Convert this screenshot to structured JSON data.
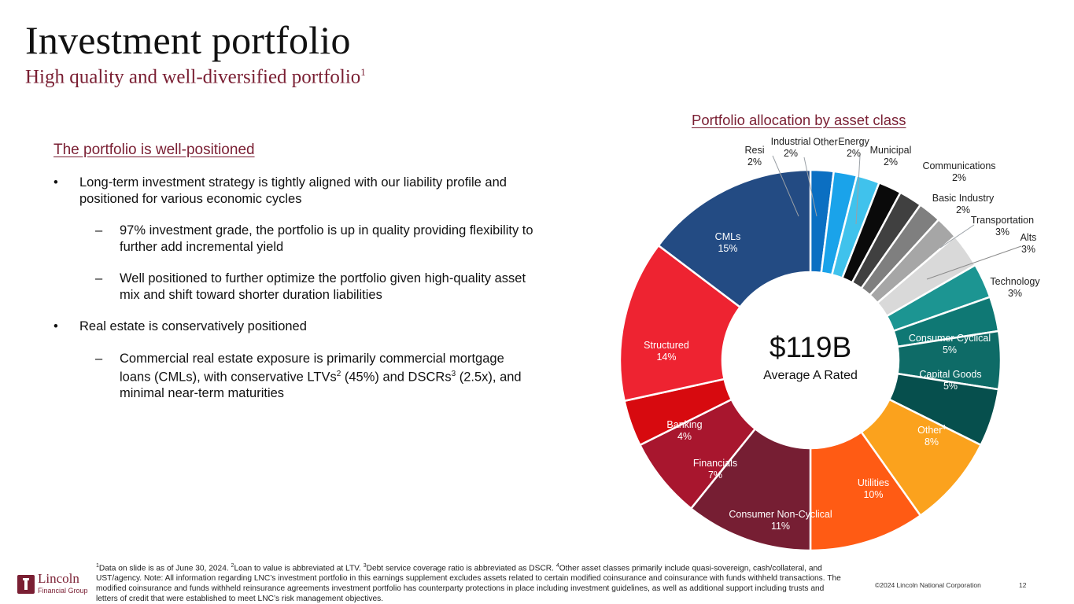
{
  "header": {
    "title": "Investment portfolio",
    "subtitle": "High quality and well-diversified portfolio",
    "subtitle_sup": "1"
  },
  "left": {
    "heading": "The portfolio is well-positioned",
    "bullet1": "Long-term investment strategy is tightly aligned with our liability profile and positioned for various economic cycles",
    "sub1": "97% investment grade, the portfolio is up in quality providing flexibility to further add incremental yield",
    "sub2": "Well positioned to further optimize the portfolio given high-quality asset mix and shift toward shorter duration liabilities",
    "bullet2": "Real estate is conservatively positioned",
    "sub3_a": "Commercial real estate exposure is primarily commercial mortgage loans (CMLs), with conservative LTVs",
    "sub3_sup1": "2",
    "sub3_b": " (45%) and DSCRs",
    "sub3_sup2": "3",
    "sub3_c": " (2.5x), and minimal near-term maturities"
  },
  "chart_data": {
    "type": "pie",
    "title": "Portfolio allocation by asset class",
    "center_value": "$119B",
    "center_label": "Average A Rated",
    "slices": [
      {
        "label": "Resi",
        "value": 2,
        "display": "2%",
        "color": "#0b6fc2"
      },
      {
        "label": "Industrial",
        "value": 2,
        "display": "2%",
        "color": "#1aa3ea"
      },
      {
        "label": "Other",
        "value": 2,
        "display": "",
        "color": "#40c2ec"
      },
      {
        "label": "Energy",
        "value": 2,
        "display": "2%",
        "color": "#0a0a0a"
      },
      {
        "label": "Municipal",
        "value": 2,
        "display": "2%",
        "color": "#404040"
      },
      {
        "label": "Communications",
        "value": 2,
        "display": "2%",
        "color": "#7f7f7f"
      },
      {
        "label": "Basic Industry",
        "value": 2,
        "display": "2%",
        "color": "#a6a6a6"
      },
      {
        "label": "Transportation",
        "value": 3,
        "display": "3%",
        "color": "#d9d9d9"
      },
      {
        "label": "Alts",
        "value": 3,
        "display": "3%",
        "color": "#1c9592"
      },
      {
        "label": "Technology",
        "value": 3,
        "display": "3%",
        "color": "#0f7874"
      },
      {
        "label": "Consumer Cyclical",
        "value": 5,
        "display": "5%",
        "color": "#0e6b67"
      },
      {
        "label": "Capital Goods",
        "value": 5,
        "display": "5%",
        "color": "#064f4d"
      },
      {
        "label": "Other",
        "label_sup": "4",
        "value": 8,
        "display": "8%",
        "color": "#fba21d"
      },
      {
        "label": "Utilities",
        "value": 10,
        "display": "10%",
        "color": "#ff5b14"
      },
      {
        "label": "Consumer Non-Cyclical",
        "value": 11,
        "display": "11%",
        "color": "#761e33"
      },
      {
        "label": "Financials",
        "value": 7,
        "display": "7%",
        "color": "#a8162e"
      },
      {
        "label": "Banking",
        "value": 4,
        "display": "4%",
        "color": "#d70a0f"
      },
      {
        "label": "Structured",
        "value": 14,
        "display": "14%",
        "color": "#ee2331"
      },
      {
        "label": "CMLs",
        "value": 15,
        "display": "15%",
        "color": "#234b83"
      }
    ]
  },
  "footer": {
    "footnote_html_parts": [
      {
        "sup": "1",
        "text": "Data on slide is as of June 30, 2024.  "
      },
      {
        "sup": "2",
        "text": "Loan to value is abbreviated at LTV.  "
      },
      {
        "sup": "3",
        "text": "Debt service coverage ratio is abbreviated as DSCR.  "
      },
      {
        "sup": "4",
        "text": "Other asset classes primarily include quasi-sovereign, cash/collateral, and UST/agency. Note: All information regarding LNC’s investment portfolio in this earnings supplement excludes assets related to certain modified coinsurance and coinsurance with funds withheld transactions. The modified coinsurance and funds withheld reinsurance agreements investment portfolio has counterparty protections in place including investment guidelines, as well as additional support including trusts and letters of credit that were established to meet LNC’s risk management objectives."
      }
    ],
    "copyright": "©2024 Lincoln National Corporation",
    "page_number": "12",
    "logo_name": "Lincoln",
    "logo_group": "Financial Group"
  },
  "colors": {
    "accent": "#7a1f33"
  }
}
